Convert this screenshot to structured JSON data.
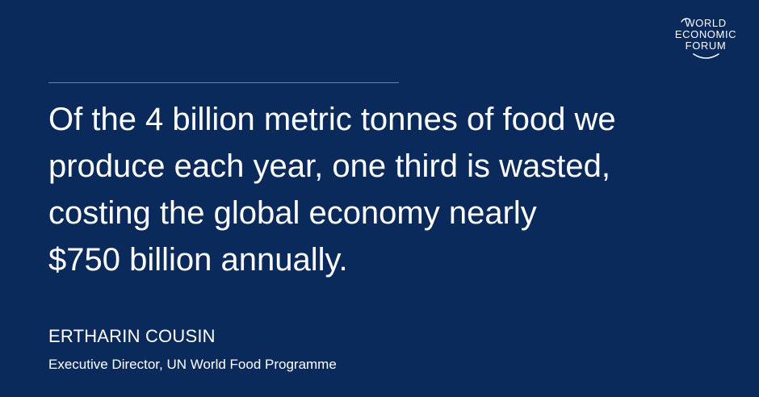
{
  "logo": {
    "line1": "WORLD",
    "line2": "ECONOMIC",
    "line3": "FORUM"
  },
  "quote": {
    "lines": [
      "Of the 4 billion metric tonnes of food we",
      "produce each year, one third is wasted,",
      "costing the global economy nearly",
      "$750 billion annually."
    ]
  },
  "author": {
    "name": "ERTHARIN COUSIN",
    "title": "Executive Director, UN World Food Programme"
  },
  "colors": {
    "background": "#0b2a5c",
    "text": "#ffffff",
    "divider": "#6f85a8"
  }
}
